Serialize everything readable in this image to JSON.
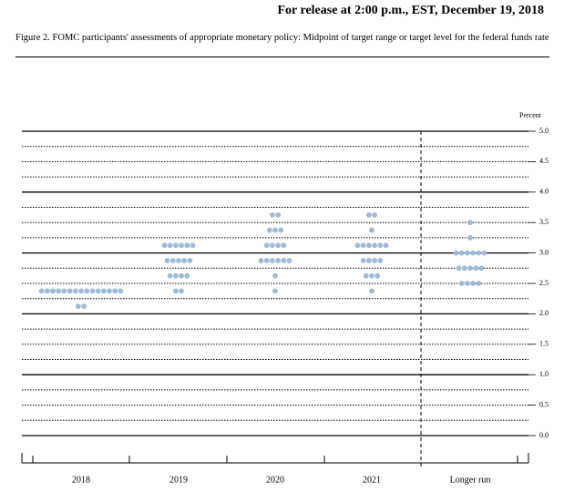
{
  "header": "For release at 2:00 p.m., EST, December 19, 2018",
  "chart_data": {
    "type": "dot",
    "title": "Figure 2. FOMC participants' assessments of appropriate monetary policy: Midpoint of target range or target level for the federal funds rate",
    "y_label": "Percent",
    "categories": [
      "2018",
      "2019",
      "2020",
      "2021",
      "Longer run"
    ],
    "values": [
      [
        2.375,
        2.375,
        2.375,
        2.375,
        2.375,
        2.375,
        2.375,
        2.375,
        2.375,
        2.375,
        2.375,
        2.375,
        2.375,
        2.375,
        2.375,
        2.125,
        2.125
      ],
      [
        3.125,
        3.125,
        3.125,
        3.125,
        3.125,
        3.125,
        2.875,
        2.875,
        2.875,
        2.875,
        2.875,
        2.625,
        2.625,
        2.625,
        2.625,
        2.375,
        2.375
      ],
      [
        3.625,
        3.625,
        3.375,
        3.375,
        3.375,
        3.125,
        3.125,
        3.125,
        3.125,
        2.875,
        2.875,
        2.875,
        2.875,
        2.875,
        2.875,
        2.625,
        2.375
      ],
      [
        3.625,
        3.625,
        3.375,
        3.125,
        3.125,
        3.125,
        3.125,
        3.125,
        3.125,
        2.875,
        2.875,
        2.875,
        2.875,
        2.625,
        2.625,
        2.625,
        2.375
      ],
      [
        3.5,
        3.25,
        3.0,
        3.0,
        3.0,
        3.0,
        3.0,
        3.0,
        2.75,
        2.75,
        2.75,
        2.75,
        2.75,
        2.5,
        2.5,
        2.5,
        2.5
      ]
    ],
    "color": "#9dbbd8",
    "ylim": [
      0,
      5
    ],
    "yticks": [
      {
        "value": 0,
        "label": "0.0"
      },
      {
        "value": 0.5,
        "label": "0.5"
      },
      {
        "value": 1,
        "label": "1.0"
      },
      {
        "value": 1.5,
        "label": "1.5"
      },
      {
        "value": 2,
        "label": "2.0"
      },
      {
        "value": 2.5,
        "label": "2.5"
      },
      {
        "value": 3,
        "label": "3.0"
      },
      {
        "value": 3.5,
        "label": "3.5"
      },
      {
        "value": 4,
        "label": "4.0"
      },
      {
        "value": 4.5,
        "label": "4.5"
      },
      {
        "value": 5,
        "label": "5.0"
      }
    ],
    "minor_gridlines": [
      0.25,
      0.75,
      1.25,
      1.75,
      2.25,
      2.75,
      3.25,
      3.75,
      4.25,
      4.75
    ],
    "grid": true
  }
}
